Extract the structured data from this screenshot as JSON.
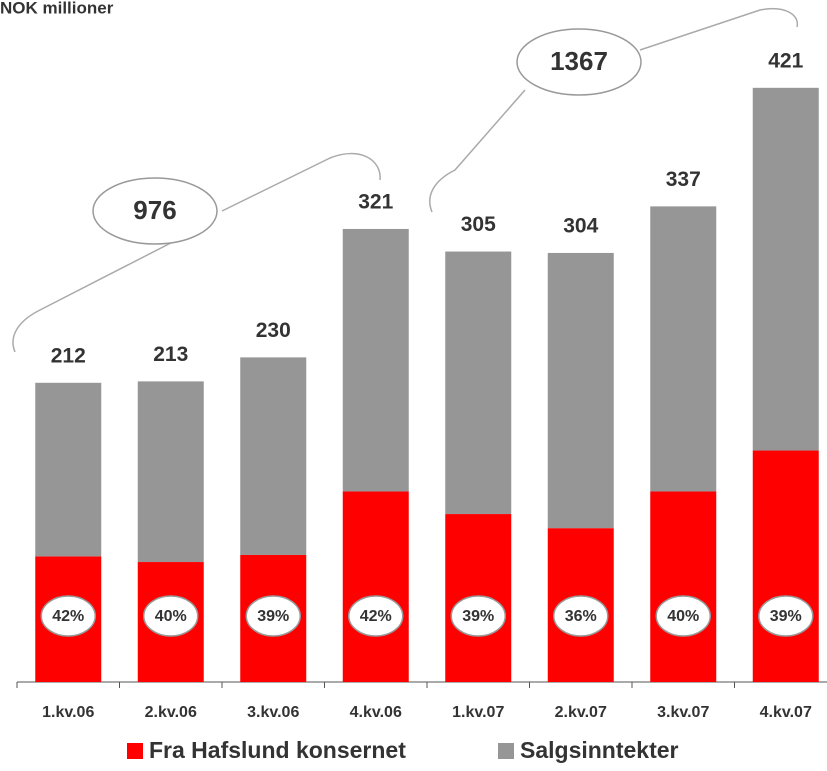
{
  "chart_data": {
    "type": "stacked-bar",
    "title": "NOK millioner",
    "categories": [
      "1.kv.06",
      "2.kv.06",
      "3.kv.06",
      "4.kv.06",
      "1.kv.07",
      "2.kv.07",
      "3.kv.07",
      "4.kv.07"
    ],
    "series": [
      {
        "name": "Fra Hafslund konsernet",
        "color": "#ff0000",
        "values": [
          89,
          85,
          90,
          135,
          119,
          109,
          135,
          164
        ],
        "share_labels": [
          "42%",
          "40%",
          "39%",
          "42%",
          "39%",
          "36%",
          "40%",
          "39%"
        ]
      },
      {
        "name": "Salgsinntekter",
        "color": "#969696",
        "values": [
          123,
          128,
          140,
          186,
          186,
          195,
          202,
          257
        ]
      }
    ],
    "totals": [
      212,
      213,
      230,
      321,
      305,
      304,
      337,
      421
    ],
    "annotations": [
      976,
      1367
    ],
    "ylim": [
      0,
      440
    ]
  }
}
